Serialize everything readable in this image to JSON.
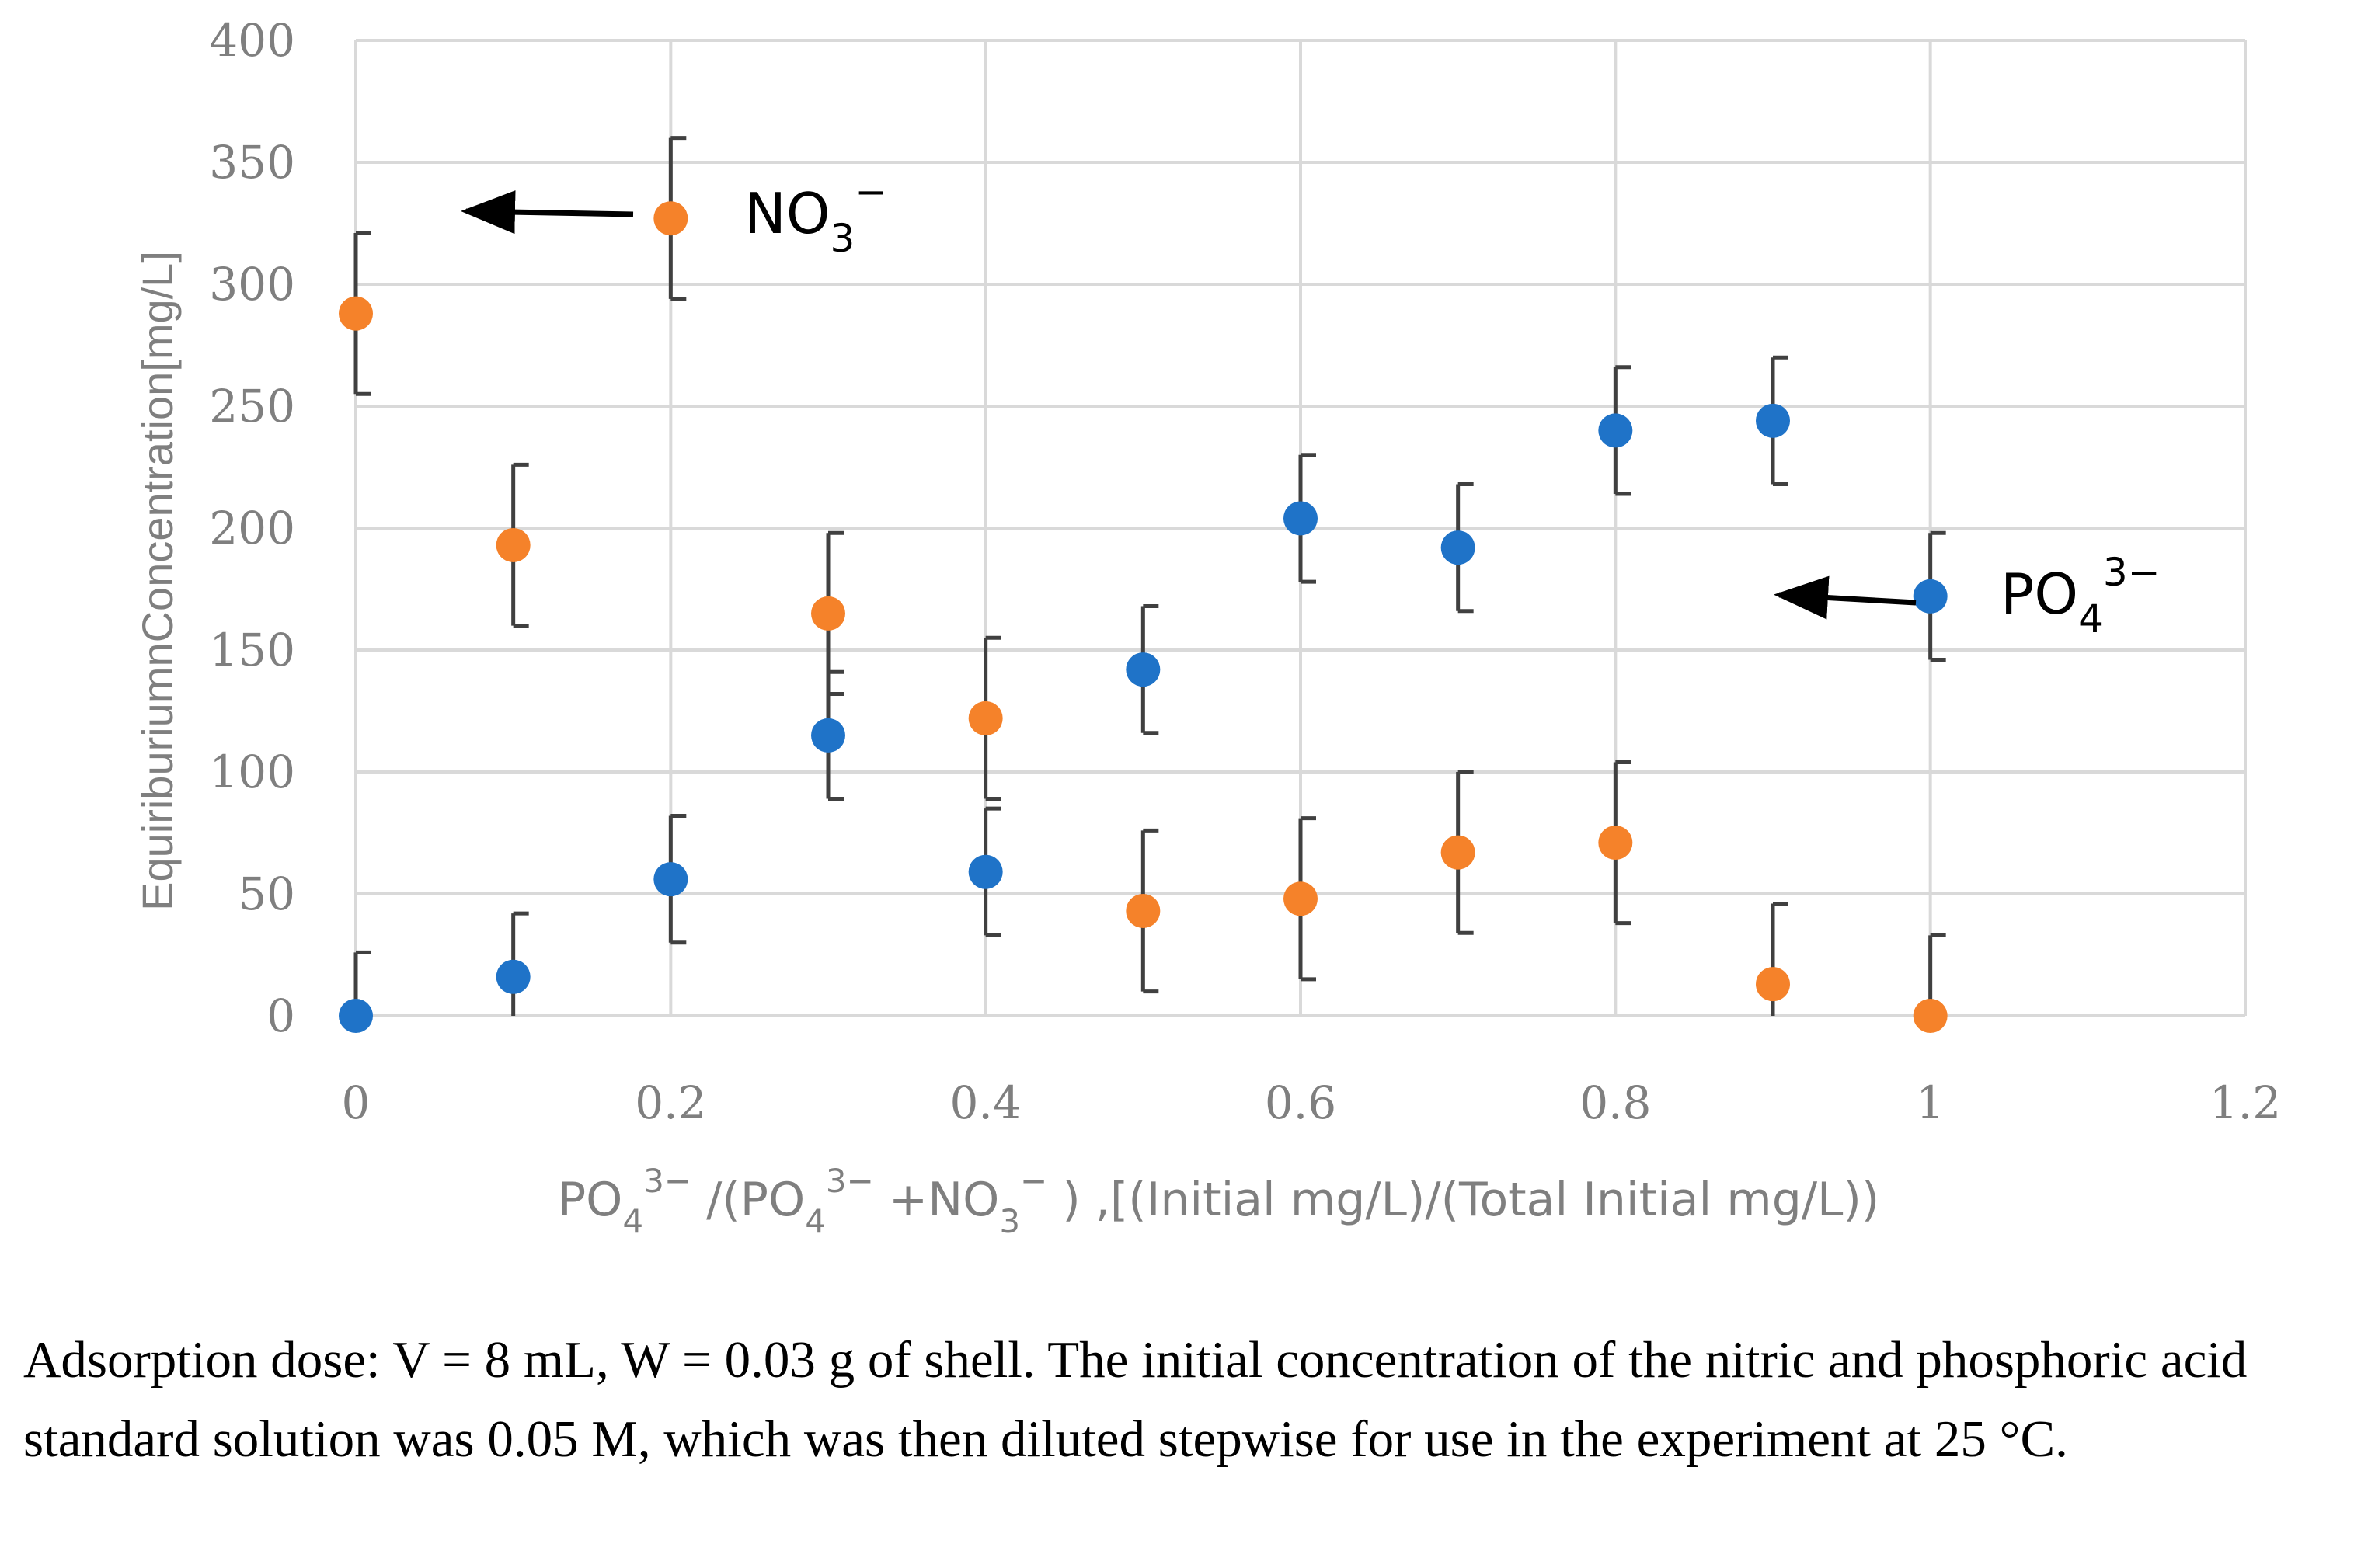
{
  "chart_data": {
    "type": "scatter",
    "title": "",
    "ylabel": "EquiriburiumnConcentration[mg/L]",
    "xlabel": {
      "part1": "PO",
      "sub1": "4",
      "sup1": "3−",
      "part2": " /(PO",
      "sub2": "4",
      "sup2": "3−",
      "part3": " +NO",
      "sub3": "3",
      "sup3": "−",
      "part4": " )   ,[(Initial mg/L)/(Total Initial mg/L))"
    },
    "xlim": [
      0,
      1.2
    ],
    "ylim": [
      0,
      400
    ],
    "x_ticks": [
      "0",
      "0.2",
      "0.4",
      "0.6",
      "0.8",
      "1",
      "1.2"
    ],
    "y_ticks": [
      "0",
      "50",
      "100",
      "150",
      "200",
      "250",
      "300",
      "350",
      "400"
    ],
    "grid": true,
    "series": [
      {
        "name": "NO3−",
        "color": "#f5822a",
        "x": [
          0,
          0.1,
          0.2,
          0.3,
          0.4,
          0.5,
          0.6,
          0.7,
          0.8,
          0.9,
          1.0
        ],
        "values": [
          288,
          193,
          327,
          165,
          122,
          43,
          48,
          67,
          71,
          13,
          0
        ],
        "error": [
          33,
          33,
          33,
          33,
          33,
          33,
          33,
          33,
          33,
          33,
          33
        ]
      },
      {
        "name": "PO43−",
        "color": "#1f73c8",
        "x": [
          0,
          0.1,
          0.2,
          0.3,
          0.4,
          0.5,
          0.6,
          0.7,
          0.8,
          0.9,
          1.0
        ],
        "values": [
          0,
          16,
          56,
          115,
          59,
          142,
          204,
          192,
          240,
          244,
          172
        ],
        "error": [
          26,
          26,
          26,
          26,
          26,
          26,
          26,
          26,
          26,
          26,
          26
        ]
      }
    ],
    "annotations": {
      "no3": {
        "base": "NO",
        "sub": "3",
        "sup": "−"
      },
      "po4": {
        "base": "PO",
        "sub": "4",
        "sup": "3−"
      }
    }
  },
  "caption": "Adsorption dose: V = 8 mL, W = 0.03 g of shell. The initial concentration of the nitric and phosphoric acid standard solution was 0.05 M, which was then diluted stepwise for use in the experiment at 25 °C."
}
